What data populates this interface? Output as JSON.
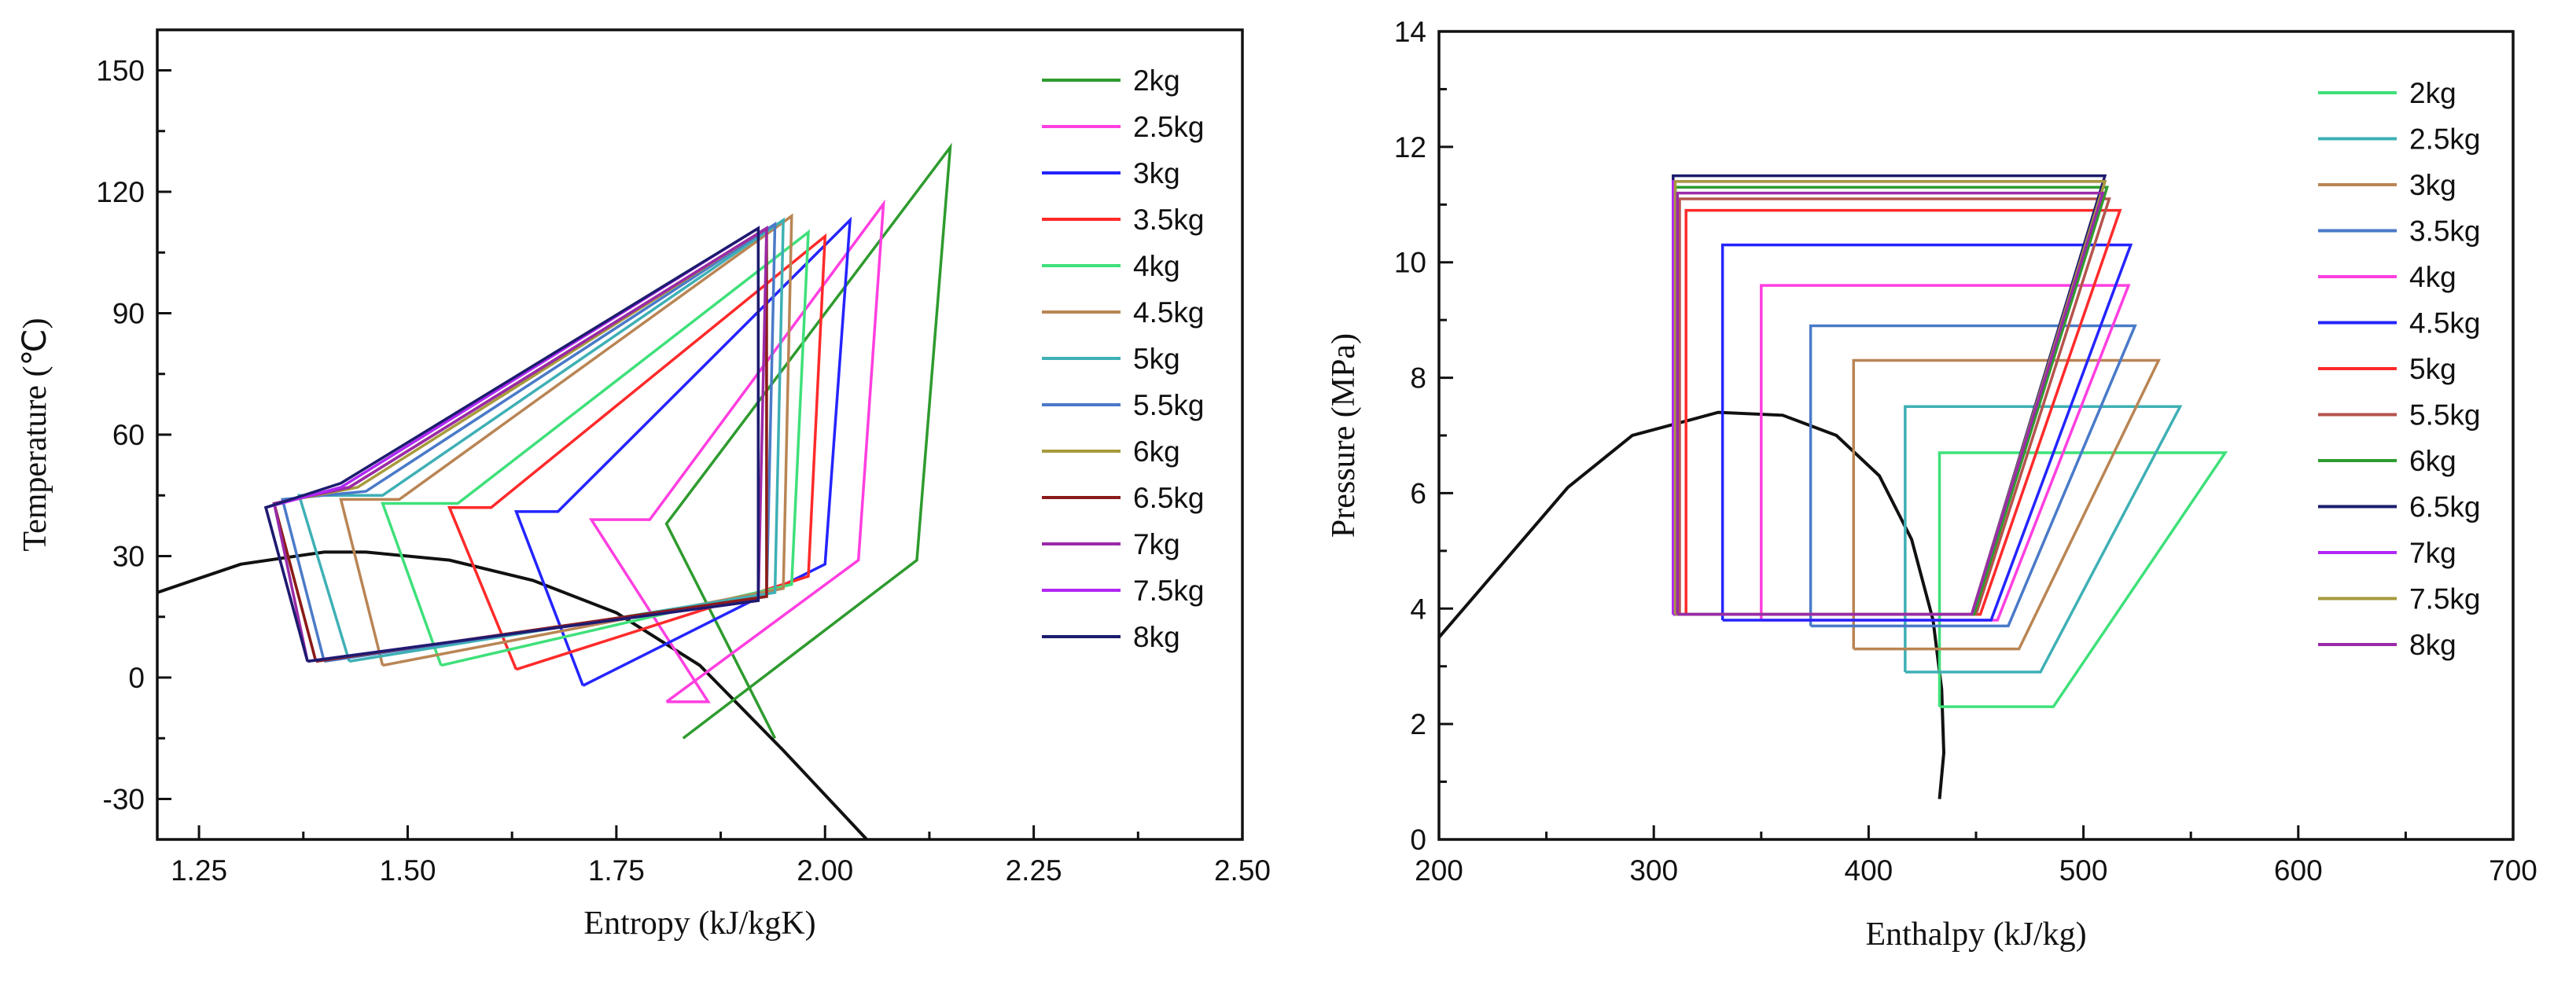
{
  "chart_data": [
    {
      "type": "line",
      "title": "",
      "xlabel": "Entropy (kJ/kgK)",
      "ylabel": "Temperature (℃)",
      "xlim": [
        1.2,
        2.5
      ],
      "ylim": [
        -40,
        160
      ],
      "xticks": [
        1.25,
        1.5,
        1.75,
        2.0,
        2.25,
        2.5
      ],
      "xtick_labels": [
        "1.25",
        "1.50",
        "1.75",
        "2.00",
        "2.25",
        "2.50"
      ],
      "yticks": [
        -30,
        0,
        30,
        60,
        90,
        120,
        150
      ],
      "ytick_labels": [
        "-30",
        "0",
        "30",
        "60",
        "90",
        "120",
        "150"
      ],
      "grid": false,
      "legend_position": "top-right",
      "series": [
        {
          "name": "2kg",
          "color": "#2e9b2e",
          "points": [
            [
              1.83,
              -15
            ],
            [
              2.11,
              29
            ],
            [
              2.15,
              131
            ],
            [
              1.81,
              38
            ],
            [
              1.94,
              -15
            ]
          ]
        },
        {
          "name": "2.5kg",
          "color": "#ff3fe0",
          "points": [
            [
              1.81,
              -6
            ],
            [
              2.04,
              29
            ],
            [
              2.07,
              117
            ],
            [
              1.79,
              39
            ],
            [
              1.72,
              39
            ],
            [
              1.86,
              -6
            ],
            [
              1.81,
              -6
            ]
          ]
        },
        {
          "name": "3kg",
          "color": "#2424ff",
          "points": [
            [
              1.71,
              -2
            ],
            [
              2.0,
              28
            ],
            [
              2.03,
              113
            ],
            [
              1.68,
              41
            ],
            [
              1.63,
              41
            ],
            [
              1.71,
              -2
            ]
          ]
        },
        {
          "name": "3.5kg",
          "color": "#ff2a2a",
          "points": [
            [
              1.63,
              2
            ],
            [
              1.98,
              25
            ],
            [
              2.0,
              109
            ],
            [
              1.6,
              42
            ],
            [
              1.55,
              42
            ],
            [
              1.63,
              2
            ]
          ]
        },
        {
          "name": "4kg",
          "color": "#3fe07a",
          "points": [
            [
              1.54,
              3
            ],
            [
              1.96,
              23
            ],
            [
              1.98,
              110
            ],
            [
              1.56,
              43
            ],
            [
              1.47,
              43
            ],
            [
              1.54,
              3
            ]
          ]
        },
        {
          "name": "4.5kg",
          "color": "#b98554",
          "points": [
            [
              1.47,
              3
            ],
            [
              1.95,
              22
            ],
            [
              1.96,
              114
            ],
            [
              1.49,
              44
            ],
            [
              1.42,
              44
            ],
            [
              1.47,
              3
            ]
          ]
        },
        {
          "name": "5kg",
          "color": "#3eb0b5",
          "points": [
            [
              1.43,
              4
            ],
            [
              1.94,
              21
            ],
            [
              1.95,
              113
            ],
            [
              1.47,
              45
            ],
            [
              1.37,
              45
            ],
            [
              1.43,
              4
            ]
          ]
        },
        {
          "name": "5.5kg",
          "color": "#4a7ac8",
          "points": [
            [
              1.4,
              4
            ],
            [
              1.93,
              20
            ],
            [
              1.94,
              112
            ],
            [
              1.45,
              46
            ],
            [
              1.35,
              44
            ],
            [
              1.4,
              4
            ]
          ]
        },
        {
          "name": "6kg",
          "color": "#a79a3c",
          "points": [
            [
              1.39,
              4
            ],
            [
              1.93,
              20
            ],
            [
              1.93,
              111
            ],
            [
              1.44,
              47
            ],
            [
              1.34,
              43
            ],
            [
              1.39,
              4
            ]
          ]
        },
        {
          "name": "6.5kg",
          "color": "#8b1a1a",
          "points": [
            [
              1.39,
              4
            ],
            [
              1.93,
              20
            ],
            [
              1.93,
              111
            ],
            [
              1.43,
              47
            ],
            [
              1.34,
              43
            ],
            [
              1.39,
              4
            ]
          ]
        },
        {
          "name": "7kg",
          "color": "#9a2aa8",
          "points": [
            [
              1.38,
              4
            ],
            [
              1.92,
              19
            ],
            [
              1.93,
              111
            ],
            [
              1.43,
              47
            ],
            [
              1.34,
              43
            ],
            [
              1.38,
              4
            ]
          ]
        },
        {
          "name": "7.5kg",
          "color": "#b028f5",
          "points": [
            [
              1.38,
              4
            ],
            [
              1.92,
              19
            ],
            [
              1.92,
              111
            ],
            [
              1.42,
              47
            ],
            [
              1.33,
              42
            ],
            [
              1.38,
              4
            ]
          ]
        },
        {
          "name": "8kg",
          "color": "#1c1c6e",
          "points": [
            [
              1.38,
              4
            ],
            [
              1.92,
              19
            ],
            [
              1.92,
              111
            ],
            [
              1.42,
              48
            ],
            [
              1.33,
              42
            ],
            [
              1.38,
              4
            ]
          ]
        }
      ],
      "saturation_curve": {
        "color": "#111111",
        "points": [
          [
            1.2,
            21
          ],
          [
            1.3,
            28
          ],
          [
            1.4,
            31
          ],
          [
            1.45,
            31
          ],
          [
            1.55,
            29
          ],
          [
            1.65,
            24
          ],
          [
            1.75,
            16
          ],
          [
            1.85,
            3
          ],
          [
            1.95,
            -18
          ],
          [
            2.05,
            -40
          ]
        ]
      }
    },
    {
      "type": "line",
      "title": "",
      "xlabel": "Enthalpy (kJ/kg)",
      "ylabel": "Pressure (MPa)",
      "xlim": [
        200,
        700
      ],
      "ylim": [
        0,
        14
      ],
      "xticks": [
        200,
        300,
        400,
        500,
        600,
        700
      ],
      "xtick_labels": [
        "200",
        "300",
        "400",
        "500",
        "600",
        "700"
      ],
      "yticks": [
        0,
        2,
        4,
        6,
        8,
        10,
        12,
        14
      ],
      "ytick_labels": [
        "0",
        "2",
        "4",
        "6",
        "8",
        "10",
        "12",
        "14"
      ],
      "grid": false,
      "legend_position": "top-right",
      "series": [
        {
          "name": "2kg",
          "color": "#3fe07a",
          "points": [
            [
              433,
              2.3
            ],
            [
              486,
              2.3
            ],
            [
              566,
              6.7
            ],
            [
              433,
              6.7
            ],
            [
              433,
              2.3
            ]
          ]
        },
        {
          "name": "2.5kg",
          "color": "#3eb0b5",
          "points": [
            [
              417,
              2.9
            ],
            [
              480,
              2.9
            ],
            [
              545,
              7.5
            ],
            [
              417,
              7.5
            ],
            [
              417,
              2.9
            ]
          ]
        },
        {
          "name": "3kg",
          "color": "#b98554",
          "points": [
            [
              393,
              3.3
            ],
            [
              470,
              3.3
            ],
            [
              535,
              8.3
            ],
            [
              393,
              8.3
            ],
            [
              393,
              3.3
            ]
          ]
        },
        {
          "name": "3.5kg",
          "color": "#4a7ac8",
          "points": [
            [
              373,
              3.7
            ],
            [
              465,
              3.7
            ],
            [
              524,
              8.9
            ],
            [
              373,
              8.9
            ],
            [
              373,
              3.7
            ]
          ]
        },
        {
          "name": "4kg",
          "color": "#ff3fe0",
          "points": [
            [
              350,
              3.8
            ],
            [
              460,
              3.8
            ],
            [
              521,
              9.6
            ],
            [
              350,
              9.6
            ],
            [
              350,
              3.8
            ]
          ]
        },
        {
          "name": "4.5kg",
          "color": "#2424ff",
          "points": [
            [
              332,
              3.8
            ],
            [
              457,
              3.8
            ],
            [
              522,
              10.3
            ],
            [
              332,
              10.3
            ],
            [
              332,
              3.8
            ]
          ]
        },
        {
          "name": "5kg",
          "color": "#ff2a2a",
          "points": [
            [
              315,
              3.9
            ],
            [
              452,
              3.9
            ],
            [
              517,
              10.9
            ],
            [
              315,
              10.9
            ],
            [
              315,
              3.9
            ]
          ]
        },
        {
          "name": "5.5kg",
          "color": "#b5534d",
          "points": [
            [
              312,
              3.9
            ],
            [
              450,
              3.9
            ],
            [
              512,
              11.1
            ],
            [
              312,
              11.1
            ],
            [
              312,
              3.9
            ]
          ]
        },
        {
          "name": "6kg",
          "color": "#2e9b2e",
          "points": [
            [
              310,
              3.9
            ],
            [
              449,
              3.9
            ],
            [
              511,
              11.3
            ],
            [
              310,
              11.3
            ],
            [
              310,
              3.9
            ]
          ]
        },
        {
          "name": "6.5kg",
          "color": "#1c1c6e",
          "points": [
            [
              309,
              3.9
            ],
            [
              448,
              3.9
            ],
            [
              510,
              11.5
            ],
            [
              309,
              11.5
            ],
            [
              309,
              3.9
            ]
          ]
        },
        {
          "name": "7kg",
          "color": "#b028f5",
          "points": [
            [
              309,
              3.9
            ],
            [
              448,
              3.9
            ],
            [
              510,
              11.4
            ],
            [
              309,
              11.4
            ],
            [
              309,
              3.9
            ]
          ]
        },
        {
          "name": "7.5kg",
          "color": "#a79a3c",
          "points": [
            [
              310,
              3.9
            ],
            [
              448,
              3.9
            ],
            [
              510,
              11.4
            ],
            [
              310,
              11.4
            ],
            [
              310,
              3.9
            ]
          ]
        },
        {
          "name": "8kg",
          "color": "#9a2aa8",
          "points": [
            [
              311,
              3.9
            ],
            [
              448,
              3.9
            ],
            [
              509,
              11.2
            ],
            [
              311,
              11.2
            ],
            [
              311,
              3.9
            ]
          ]
        }
      ],
      "saturation_curve": {
        "color": "#111111",
        "points": [
          [
            200,
            3.5
          ],
          [
            230,
            4.8
          ],
          [
            260,
            6.1
          ],
          [
            290,
            7.0
          ],
          [
            330,
            7.4
          ],
          [
            360,
            7.35
          ],
          [
            385,
            7.0
          ],
          [
            405,
            6.3
          ],
          [
            420,
            5.2
          ],
          [
            430,
            3.8
          ],
          [
            434,
            2.6
          ],
          [
            435,
            1.5
          ],
          [
            433,
            0.7
          ]
        ]
      }
    }
  ]
}
